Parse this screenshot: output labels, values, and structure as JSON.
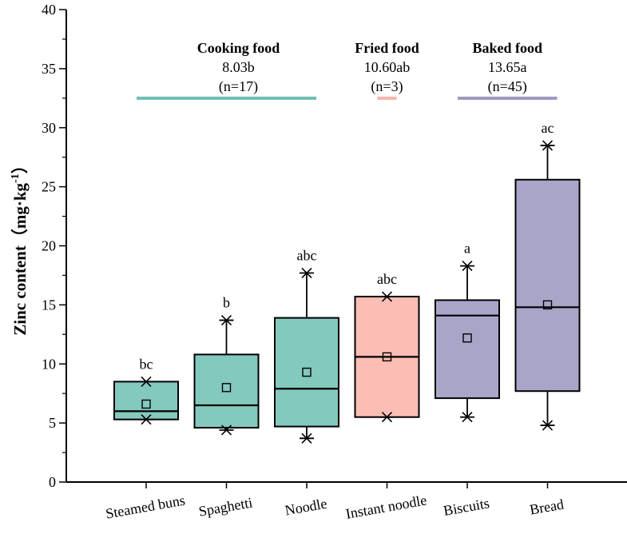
{
  "chart_data": {
    "type": "box",
    "ylabel": "Zinc content（mg·kg",
    "ylabel_sup": "-1",
    "ylabel_close": "）",
    "ylim": [
      0,
      40
    ],
    "yticks": [
      0,
      5,
      10,
      15,
      20,
      25,
      30,
      35,
      40
    ],
    "categories": [
      "Steamed buns",
      "Spaghetti",
      "Noodle",
      "Instant noodle",
      "Biscuits",
      "Bread"
    ],
    "boxes": [
      {
        "category": "Steamed buns",
        "group": "cooking",
        "q1": 5.3,
        "median": 6.0,
        "q3": 8.5,
        "mean": 6.6,
        "whisker_low": 5.3,
        "whisker_high": 8.5,
        "min": 5.3,
        "max": 8.5,
        "letter": "bc"
      },
      {
        "category": "Spaghetti",
        "group": "cooking",
        "q1": 4.6,
        "median": 6.5,
        "q3": 10.8,
        "mean": 8.0,
        "whisker_low": 4.4,
        "whisker_high": 13.7,
        "min": 4.4,
        "max": 13.7,
        "letter": "b"
      },
      {
        "category": "Noodle",
        "group": "cooking",
        "q1": 4.7,
        "median": 7.9,
        "q3": 13.9,
        "mean": 9.3,
        "whisker_low": 3.7,
        "whisker_high": 17.7,
        "min": 3.7,
        "max": 17.7,
        "letter": "abc"
      },
      {
        "category": "Instant noodle",
        "group": "fried",
        "q1": 5.5,
        "median": 10.6,
        "q3": 15.7,
        "mean": 10.6,
        "whisker_low": 5.5,
        "whisker_high": 15.7,
        "min": 5.5,
        "max": 15.7,
        "letter": "abc"
      },
      {
        "category": "Biscuits",
        "group": "baked",
        "q1": 7.1,
        "median": 14.1,
        "q3": 15.4,
        "mean": 12.2,
        "whisker_low": 5.5,
        "whisker_high": 18.3,
        "min": 5.5,
        "max": 18.3,
        "letter": "a"
      },
      {
        "category": "Bread",
        "group": "baked",
        "q1": 7.7,
        "median": 14.8,
        "q3": 25.6,
        "mean": 15.0,
        "whisker_low": 4.8,
        "whisker_high": 28.5,
        "min": 4.8,
        "max": 28.5,
        "letter": "ac"
      }
    ],
    "groups": [
      {
        "key": "cooking",
        "title": "Cooking food",
        "mean_label": "8.03b",
        "n_label": "(n=17)",
        "color": "#84c9bd",
        "line_color": "#6fbfb3",
        "span": [
          0,
          2
        ]
      },
      {
        "key": "fried",
        "title": "Fried food",
        "mean_label": "10.60ab",
        "n_label": "(n=3)",
        "color": "#fbbdb4",
        "line_color": "#f7b4ab",
        "span": [
          3,
          3
        ]
      },
      {
        "key": "baked",
        "title": "Baked food",
        "mean_label": "13.65a",
        "n_label": "(n=45)",
        "color": "#a9a5c8",
        "line_color": "#9d98c0",
        "span": [
          4,
          5
        ]
      }
    ],
    "group_line_value": 32.5,
    "grid": false
  }
}
